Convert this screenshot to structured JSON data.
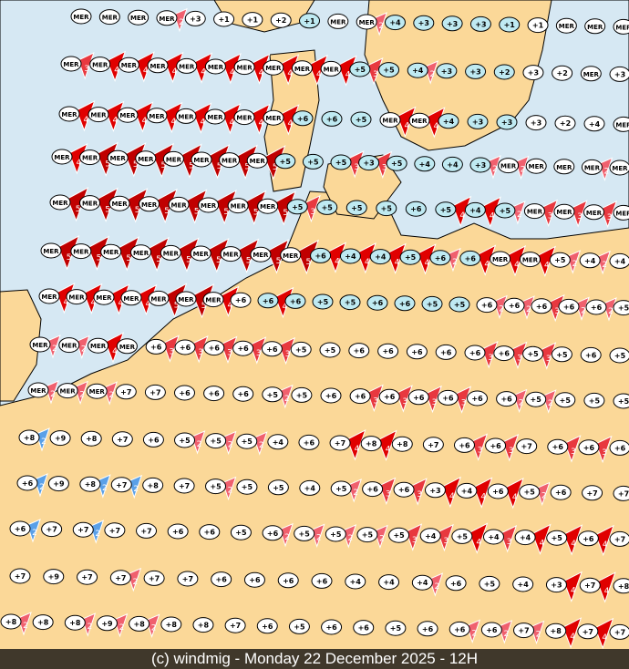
{
  "footer": {
    "caption": "(c) windmig - Monday 22 December 2025 - 12H"
  },
  "colors": {
    "sea": "#d6e8f3",
    "land": "#fbd898",
    "sea_label": "#bfeaf2",
    "land_label": "#ffffff",
    "wind_2": "#f0606e",
    "wind_3": "#e8383f",
    "wind_4": "#e00000",
    "wind_5": "#c00000",
    "wind_blue": "#5aa0e8"
  },
  "legend_note": "MER",
  "rows": [
    {
      "labels": [
        "MER",
        "MER",
        "MER",
        "MER",
        "+3",
        "+1",
        "+1",
        "+2",
        "+1",
        "MER",
        "MER",
        "+4",
        "+3",
        "+3",
        "+3",
        "+1",
        "+1",
        "MER",
        "MER",
        "MER"
      ],
      "winds": [
        "0",
        "0",
        "0",
        "2",
        "0",
        "0",
        "0",
        "0",
        "0",
        "0",
        "2",
        "0",
        "0",
        "0",
        "0",
        "0",
        "0",
        "0",
        "0",
        "0"
      ]
    },
    {
      "labels": [
        "MER",
        "MER",
        "MER",
        "MER",
        "MER",
        "MER",
        "MER",
        "MER",
        "MER",
        "MER",
        "+5",
        "+5",
        "+4",
        "+3",
        "+3",
        "+2",
        "+3",
        "+2",
        "MER",
        "+3"
      ],
      "winds": [
        "3",
        "4",
        "4",
        "4",
        "4",
        "4",
        "4",
        "4",
        "4",
        "4",
        "3",
        "0",
        "2",
        "0",
        "0",
        "0",
        "0",
        "0",
        "0",
        "0"
      ]
    },
    {
      "labels": [
        "MER",
        "MER",
        "MER",
        "MER",
        "MER",
        "MER",
        "MER",
        "MER",
        "+6",
        "+6",
        "+5",
        "MER",
        "MER",
        "+4",
        "+3",
        "+3",
        "+3",
        "+2",
        "+4",
        "MER"
      ],
      "winds": [
        "4",
        "4",
        "4",
        "4",
        "4",
        "4",
        "4",
        "4",
        "0",
        "0",
        "0",
        "4",
        "4",
        "0",
        "0",
        "0",
        "0",
        "0",
        "0",
        "0"
      ]
    },
    {
      "labels": [
        "MER",
        "MER",
        "MER",
        "MER",
        "MER",
        "MER",
        "MER",
        "MER",
        "+5",
        "+5",
        "+5",
        "+3",
        "+5",
        "+4",
        "+4",
        "+3",
        "MER",
        "MER",
        "MER",
        "MER",
        "MER"
      ],
      "winds": [
        "4",
        "5",
        "5",
        "5",
        "5",
        "5",
        "5",
        "5",
        "0",
        "0",
        "3",
        "3",
        "0",
        "0",
        "0",
        "2",
        "2",
        "0",
        "0",
        "2",
        "2b"
      ]
    },
    {
      "labels": [
        "MER",
        "MER",
        "MER",
        "MER",
        "MER",
        "MER",
        "MER",
        "MER",
        "+5",
        "+5",
        "+5",
        "+5",
        "+6",
        "+5",
        "+4",
        "+5",
        "MER",
        "MER",
        "MER",
        "MER"
      ],
      "winds": [
        "5",
        "5",
        "5",
        "5",
        "5",
        "5",
        "5",
        "5",
        "3",
        "0",
        "0",
        "0",
        "0",
        "4",
        "4",
        "2",
        "3",
        "3",
        "3",
        "3"
      ]
    },
    {
      "labels": [
        "MER",
        "MER",
        "MER",
        "MER",
        "MER",
        "MER",
        "MER",
        "MER",
        "MER",
        "+6",
        "+4",
        "+4",
        "+5",
        "+6",
        "+6",
        "MER",
        "MER",
        "+5",
        "+4",
        "+4"
      ],
      "winds": [
        "5",
        "5",
        "5",
        "5",
        "5",
        "5",
        "5",
        "5",
        "5",
        "4",
        "4",
        "4",
        "4",
        "2",
        "4",
        "4",
        "4",
        "2",
        "2",
        "2"
      ]
    },
    {
      "labels": [
        "MER",
        "MER",
        "MER",
        "MER",
        "MER",
        "MER",
        "MER",
        "+6",
        "+6",
        "+6",
        "+5",
        "+5",
        "+6",
        "+6",
        "+5",
        "+5",
        "+6",
        "+6",
        "+6",
        "+6",
        "+6",
        "+5"
      ],
      "winds": [
        "4",
        "4",
        "4",
        "4",
        "5",
        "5",
        "4",
        "0",
        "4",
        "0",
        "0",
        "0",
        "0",
        "0",
        "0",
        "0",
        "2",
        "2",
        "3",
        "2",
        "2",
        "2"
      ]
    },
    {
      "labels": [
        "MER",
        "MER",
        "MER",
        "MER",
        "+6",
        "+6",
        "+6",
        "+6",
        "+6",
        "+5",
        "+5",
        "+6",
        "+6",
        "+6",
        "+6",
        "+6",
        "+6",
        "+5",
        "+5",
        "+6",
        "+5"
      ],
      "winds": [
        "2",
        "2",
        "4",
        "0",
        "3",
        "3",
        "3",
        "3",
        "3",
        "0",
        "0",
        "0",
        "0",
        "0",
        "0",
        "3",
        "3",
        "3",
        "0",
        "0",
        "3"
      ]
    },
    {
      "labels": [
        "MER",
        "MER",
        "MER",
        "+7",
        "+7",
        "+6",
        "+6",
        "+6",
        "+5",
        "+5",
        "+6",
        "+6",
        "+6",
        "+6",
        "+6",
        "+6",
        "+6",
        "+5",
        "+5",
        "+5",
        "+5"
      ],
      "winds": [
        "2",
        "2",
        "2",
        "0",
        "0",
        "0",
        "0",
        "0",
        "2",
        "0",
        "0",
        "3",
        "3",
        "3",
        "3",
        "0",
        "2",
        "2",
        "0",
        "0",
        "0"
      ]
    },
    {
      "labels": [
        "+8",
        "+9",
        "+8",
        "+7",
        "+6",
        "+5",
        "+5",
        "+5",
        "+4",
        "+6",
        "+7",
        "+8",
        "+8",
        "+7",
        "+6",
        "+6",
        "+7",
        "+6",
        "+6",
        "+6"
      ],
      "winds": [
        "2b",
        "0",
        "0",
        "0",
        "0",
        "2",
        "2",
        "2",
        "0",
        "0",
        "4",
        "4",
        "0",
        "0",
        "3",
        "3",
        "0",
        "3",
        "3",
        "3"
      ]
    },
    {
      "labels": [
        "+6",
        "+9",
        "+8",
        "+7",
        "+8",
        "+7",
        "+5",
        "+5",
        "+5",
        "+4",
        "+5",
        "+6",
        "+6",
        "+3",
        "+4",
        "+6",
        "+5",
        "+6",
        "+7",
        "+7"
      ],
      "winds": [
        "2b",
        "0",
        "2b",
        "2b",
        "0",
        "0",
        "2",
        "0",
        "0",
        "0",
        "2",
        "3",
        "3",
        "4",
        "4",
        "4",
        "2",
        "0",
        "0",
        "2"
      ]
    },
    {
      "labels": [
        "+6",
        "+7",
        "+7",
        "+7",
        "+7",
        "+6",
        "+6",
        "+5",
        "+6",
        "+5",
        "+5",
        "+5",
        "+5",
        "+4",
        "+5",
        "+4",
        "+4",
        "+5",
        "+6",
        "+7"
      ],
      "winds": [
        "2b",
        "0",
        "2b",
        "0",
        "0",
        "0",
        "0",
        "0",
        "2",
        "2",
        "2",
        "2",
        "3",
        "3",
        "4",
        "3",
        "4",
        "4",
        "4",
        "2"
      ]
    },
    {
      "labels": [
        "+7",
        "+9",
        "+7",
        "+7",
        "+7",
        "+7",
        "+6",
        "+6",
        "+6",
        "+6",
        "+4",
        "+4",
        "+4",
        "+6",
        "+5",
        "+4",
        "+3",
        "+7",
        "+8"
      ],
      "winds": [
        "0",
        "0",
        "0",
        "2",
        "0",
        "0",
        "0",
        "0",
        "0",
        "0",
        "0",
        "0",
        "2",
        "0",
        "0",
        "0",
        "4",
        "4",
        "4"
      ]
    },
    {
      "labels": [
        "+8",
        "+8",
        "+8",
        "+9",
        "+8",
        "+8",
        "+8",
        "+7",
        "+6",
        "+5",
        "+6",
        "+6",
        "+5",
        "+6",
        "+6",
        "+6",
        "+7",
        "+8",
        "+7",
        "+7"
      ],
      "winds": [
        "2",
        "0",
        "2",
        "2",
        "2",
        "0",
        "0",
        "0",
        "0",
        "0",
        "0",
        "0",
        "0",
        "0",
        "2",
        "2",
        "2",
        "4",
        "4",
        "4"
      ]
    }
  ]
}
